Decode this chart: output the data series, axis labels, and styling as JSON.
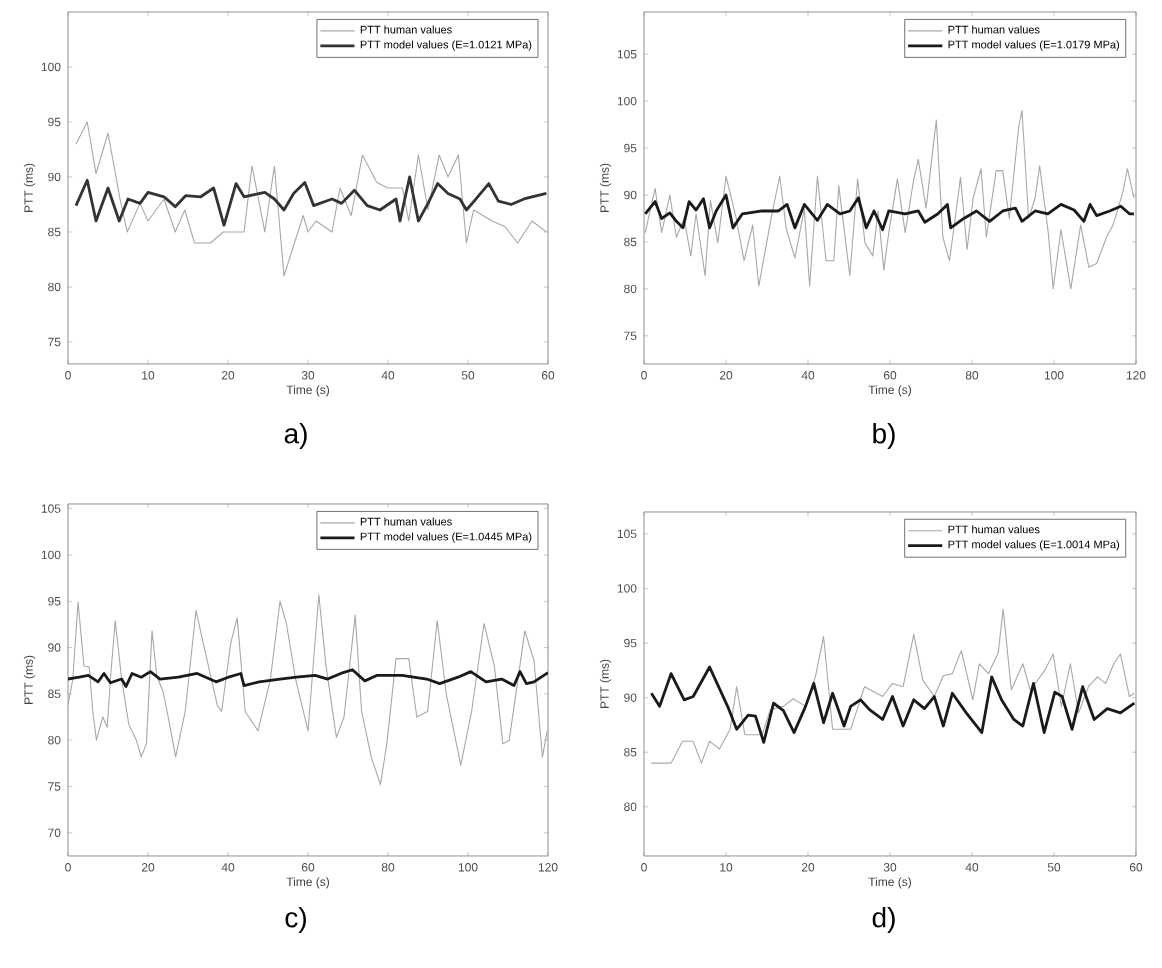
{
  "chart_data": [
    {
      "type": "line",
      "xlabel": "Time (s)",
      "ylabel": "PTT (ms)",
      "xlim": [
        0,
        60
      ],
      "ylim": [
        73,
        105
      ],
      "xticks": [
        0,
        10,
        20,
        30,
        40,
        50,
        60
      ],
      "yticks": [
        75,
        80,
        85,
        90,
        95,
        100
      ],
      "legend": "top right",
      "marker": "none",
      "line_style": "solid",
      "annotations": [
        "a)"
      ],
      "series": [
        {
          "name": "PTT human values",
          "color": "#a8a8a8",
          "x": [
            1,
            2.4,
            3.5,
            5,
            6.5,
            7.4,
            9,
            10,
            12,
            13.4,
            14.6,
            15.8,
            17.8,
            19.4,
            22,
            23,
            24.6,
            25.8,
            27,
            29.4,
            30,
            31,
            33,
            34,
            35.4,
            36.8,
            38.6,
            40,
            41.8,
            42.6,
            43.8,
            45,
            46.4,
            47.5,
            48.8,
            49.8,
            50.7,
            53,
            54.6,
            56.2,
            58,
            59.8
          ],
          "values": [
            93,
            95,
            90.3,
            94,
            88,
            85,
            87.6,
            86,
            88,
            85,
            87,
            84,
            84,
            85,
            85,
            91,
            85,
            91,
            81,
            86.5,
            85,
            86,
            85,
            89,
            86.5,
            92,
            89.5,
            89,
            89,
            86,
            92,
            87,
            92,
            90,
            92,
            84,
            87,
            86,
            85.5,
            84,
            86,
            85
          ]
        },
        {
          "name": "PTT model values (E=1.0121 MPa)",
          "color": "#333333",
          "x": [
            1,
            2.4,
            3.5,
            5,
            6.4,
            7.5,
            9,
            10,
            12,
            13.4,
            14.7,
            16.6,
            18.2,
            19.5,
            21,
            22,
            24.6,
            25.8,
            27,
            28.2,
            29.6,
            30.7,
            33,
            34.2,
            35.8,
            37.4,
            39,
            41,
            41.5,
            42.7,
            43.8,
            45,
            46.2,
            47.5,
            49,
            49.8,
            51,
            52.6,
            53.8,
            55.4,
            57,
            58,
            59.8
          ],
          "values": [
            87.4,
            89.7,
            86,
            89,
            86,
            88,
            87.6,
            88.6,
            88.2,
            87.3,
            88.3,
            88.2,
            89,
            85.6,
            89.4,
            88.2,
            88.6,
            88,
            87,
            88.5,
            89.5,
            87.4,
            88,
            87.6,
            88.8,
            87.4,
            87,
            88,
            86,
            90,
            86,
            87.6,
            89.4,
            88.5,
            88,
            87,
            88,
            89.4,
            87.8,
            87.5,
            88,
            88.2,
            88.5
          ]
        }
      ]
    },
    {
      "type": "line",
      "xlabel": "Time (s)",
      "ylabel": "PTT (ms)",
      "xlim": [
        0,
        120
      ],
      "ylim": [
        72,
        109.5
      ],
      "xticks": [
        0,
        20,
        40,
        60,
        80,
        100,
        120
      ],
      "yticks": [
        75,
        80,
        85,
        90,
        95,
        100,
        105
      ],
      "legend": "top right",
      "marker": "none",
      "line_style": "solid",
      "annotations": [
        "b)"
      ],
      "series": [
        {
          "name": "PTT human values",
          "color": "#a8a8a8",
          "x": [
            0.3,
            2.7,
            4.3,
            6.3,
            7.9,
            9.8,
            11.4,
            12.7,
            14.9,
            16.2,
            18,
            20,
            22.5,
            24.4,
            26.5,
            28,
            31.2,
            33.1,
            34.7,
            36.8,
            39.1,
            40.4,
            42.3,
            44.4,
            46.3,
            47.5,
            50.2,
            52.1,
            53.9,
            55.8,
            57.1,
            58.5,
            59.7,
            61.8,
            63.7,
            65.8,
            66.9,
            68.8,
            71.3,
            72.9,
            74.5,
            75.9,
            77.2,
            78.8,
            80.3,
            82.2,
            83.5,
            85.9,
            87.5,
            89.1,
            91.4,
            92.2,
            93.8,
            95.4,
            96.5,
            98.6,
            99.8,
            101.7,
            104.1,
            106.5,
            108.5,
            110.4,
            112.8,
            114.4,
            116.8,
            117.9,
            119.5
          ],
          "values": [
            86,
            90.7,
            86,
            90,
            85.5,
            87.5,
            83.5,
            88,
            81.4,
            89.4,
            84.9,
            92,
            87.5,
            83,
            86.8,
            80.3,
            88,
            92,
            86.4,
            83.3,
            88.5,
            80.3,
            92,
            83,
            83,
            91,
            81.4,
            91.7,
            84.9,
            83.5,
            88.3,
            82,
            86,
            91.7,
            86,
            91.7,
            93.8,
            88.6,
            98,
            85.5,
            83,
            87.5,
            91.9,
            84.2,
            89.7,
            92.8,
            85.5,
            92.6,
            92.6,
            87.5,
            97.3,
            99,
            87.5,
            89.7,
            93.1,
            86,
            80,
            86.3,
            80,
            86.8,
            82.3,
            82.7,
            85.5,
            86.8,
            90.3,
            92.8,
            89.7
          ]
        },
        {
          "name": "PTT model values (E=1.0179 MPa)",
          "color": "#1a1a1a",
          "x": [
            0.3,
            2.7,
            4.3,
            6.3,
            7.9,
            9.5,
            11,
            12.7,
            14.5,
            16,
            17.6,
            20,
            21.7,
            24,
            28.8,
            32.8,
            34.9,
            36.8,
            39.1,
            42.3,
            44.7,
            47.8,
            50.2,
            52.3,
            54.2,
            56.1,
            58.2,
            59.7,
            63.7,
            66.9,
            68.5,
            71.7,
            74,
            74.8,
            78,
            81.1,
            84.3,
            87.5,
            90.6,
            92.2,
            95.4,
            98.5,
            101.7,
            104.9,
            107.3,
            108.8,
            110.4,
            113.6,
            116.3,
            118.4,
            119.5
          ],
          "values": [
            88,
            89.3,
            87.5,
            88.1,
            87.2,
            86.5,
            89.3,
            88.4,
            89.6,
            86.5,
            88.3,
            90,
            86.5,
            88,
            88.3,
            88.3,
            89,
            86.5,
            89,
            87.3,
            89,
            88,
            88.3,
            89.7,
            86.5,
            88.3,
            86.3,
            88.3,
            88,
            88.3,
            87.1,
            88,
            89,
            86.5,
            87.5,
            88.3,
            87.2,
            88.3,
            88.6,
            87.2,
            88.3,
            88,
            89,
            88.4,
            87.2,
            89,
            87.8,
            88.3,
            88.8,
            88,
            88
          ]
        }
      ]
    },
    {
      "type": "line",
      "xlabel": "Time (s)",
      "ylabel": "PTT (ms)",
      "xlim": [
        0,
        120
      ],
      "ylim": [
        67.5,
        105.5
      ],
      "xticks": [
        0,
        20,
        40,
        60,
        80,
        100,
        120
      ],
      "yticks": [
        70,
        75,
        80,
        85,
        90,
        95,
        100,
        105
      ],
      "legend": "top right",
      "marker": "none",
      "line_style": "solid",
      "annotations": [
        "c)"
      ],
      "series": [
        {
          "name": "PTT human values",
          "color": "#a8a8a8",
          "x": [
            0,
            1.2,
            2.5,
            4,
            5.3,
            6.2,
            7.1,
            8.7,
            9.8,
            10.6,
            11.8,
            13.4,
            15.2,
            17.1,
            18.3,
            19.6,
            21,
            22.2,
            23.8,
            25.4,
            26.9,
            29.3,
            32,
            34,
            37.3,
            38.4,
            40.7,
            42.3,
            44.3,
            47.5,
            50.6,
            53,
            54.6,
            56.9,
            60,
            62.7,
            64.5,
            67.1,
            69,
            71.8,
            73.4,
            75.8,
            78.1,
            79.7,
            82,
            85.2,
            87.2,
            89.9,
            92.3,
            94.6,
            98.2,
            100.9,
            104,
            106.6,
            108.7,
            110.3,
            112.3,
            114.2,
            116.5,
            118.6,
            119.8
          ],
          "values": [
            83.8,
            86.6,
            94.9,
            88,
            87.9,
            83.1,
            80,
            82.5,
            81.4,
            86.6,
            92.9,
            86.6,
            81.7,
            80,
            78.2,
            79.6,
            91.8,
            86.9,
            85.2,
            81.7,
            78.2,
            83.1,
            94,
            90.1,
            83.8,
            83.1,
            90.5,
            93.2,
            83.1,
            81,
            86.6,
            95,
            92.6,
            86.6,
            81,
            95.7,
            88,
            80.3,
            82.5,
            93.5,
            83.1,
            78.2,
            75.2,
            79.6,
            88.8,
            88.8,
            82.5,
            83.1,
            92.9,
            84.9,
            77.3,
            83.1,
            92.6,
            88,
            79.6,
            80,
            86,
            91.8,
            88.6,
            78.2,
            81
          ]
        },
        {
          "name": "PTT model values (E=1.0445 MPa)",
          "color": "#1a1a1a",
          "x": [
            0,
            2.8,
            5.1,
            7.5,
            9,
            10.6,
            13.4,
            14.5,
            16,
            18.3,
            20.6,
            23,
            27.6,
            32.3,
            37,
            40.1,
            43.2,
            44,
            47.8,
            53,
            57.1,
            61.8,
            64.9,
            68.8,
            71.1,
            74.2,
            77.3,
            83.5,
            89.7,
            92.9,
            97.5,
            100.7,
            104.5,
            108.4,
            111.5,
            113,
            114.6,
            116.5,
            120
          ],
          "values": [
            86.6,
            86.8,
            87,
            86.3,
            87.2,
            86.2,
            86.6,
            85.8,
            87.2,
            86.8,
            87.4,
            86.6,
            86.8,
            87.2,
            86.3,
            86.8,
            87.2,
            85.9,
            86.3,
            86.6,
            86.8,
            87,
            86.6,
            87.3,
            87.6,
            86.4,
            87,
            87,
            86.6,
            86.1,
            86.8,
            87.4,
            86.3,
            86.6,
            85.9,
            87.4,
            86.1,
            86.3,
            87.3
          ]
        }
      ]
    },
    {
      "type": "line",
      "xlabel": "Time (s)",
      "ylabel": "PTT (ms)",
      "xlim": [
        0,
        60
      ],
      "ylim": [
        75.5,
        107
      ],
      "xticks": [
        0,
        10,
        20,
        30,
        40,
        50,
        60
      ],
      "yticks": [
        80,
        85,
        90,
        95,
        100,
        105
      ],
      "legend": "top right",
      "marker": "none",
      "line_style": "solid",
      "annotations": [
        "d)"
      ],
      "series": [
        {
          "name": "PTT human values",
          "color": "#a8a8a8",
          "x": [
            0.9,
            3.3,
            4.7,
            6,
            7,
            8,
            9.2,
            10.5,
            11.3,
            12.3,
            14.4,
            15.4,
            17,
            18.2,
            19.7,
            20.9,
            21.9,
            23,
            25.2,
            26.9,
            29.1,
            30.3,
            31.6,
            32.9,
            34,
            35.4,
            36.5,
            37.6,
            38.7,
            40.1,
            40.9,
            42,
            43.2,
            43.8,
            44.8,
            46.2,
            47.1,
            48.8,
            49.9,
            50.9,
            52,
            53,
            54.2,
            55.3,
            56.3,
            57.3,
            58.1,
            59.2,
            59.8
          ],
          "values": [
            84,
            84,
            86,
            86,
            84,
            86,
            85.3,
            87.1,
            91,
            86.6,
            86.6,
            88.9,
            89.2,
            89.9,
            89.2,
            91.9,
            95.6,
            87.1,
            87.1,
            91,
            90.1,
            91.3,
            91,
            95.8,
            91.6,
            90.1,
            92,
            92.2,
            94.3,
            89.8,
            93.1,
            92.2,
            94.1,
            98.1,
            90.7,
            93.1,
            90.7,
            92.4,
            94,
            89.2,
            93.1,
            88.6,
            91,
            91.9,
            91.3,
            93.1,
            94,
            90.1,
            90.4
          ]
        },
        {
          "name": "PTT model values (E=1.0014 MPa)",
          "color": "#1a1a1a",
          "x": [
            0.9,
            1.9,
            3.3,
            4.9,
            6,
            8,
            10.2,
            11.3,
            12.7,
            13.6,
            14.6,
            15.8,
            17,
            18.3,
            19.7,
            20.7,
            21.9,
            23,
            24.4,
            25.2,
            26.4,
            27.5,
            29.1,
            30.3,
            31.6,
            32.9,
            34.2,
            35.4,
            36.5,
            37.6,
            39.3,
            41.2,
            42.4,
            43.6,
            45.1,
            46.2,
            47.5,
            48.8,
            50.1,
            51,
            52.2,
            53.5,
            54.9,
            56.5,
            58.1,
            59.8
          ],
          "values": [
            90.4,
            89.2,
            92.2,
            89.8,
            90.1,
            92.8,
            89.2,
            87.1,
            88.4,
            88.3,
            85.9,
            89.5,
            88.8,
            86.8,
            89.2,
            91.3,
            87.7,
            90.4,
            87.4,
            89.2,
            89.8,
            88.9,
            88,
            90.1,
            87.4,
            89.8,
            89,
            90.1,
            87.4,
            90.4,
            88.6,
            86.8,
            91.9,
            89.8,
            88,
            87.4,
            91.3,
            86.8,
            90.5,
            90.1,
            87.1,
            91,
            88,
            89,
            88.6,
            89.5
          ]
        }
      ]
    }
  ]
}
